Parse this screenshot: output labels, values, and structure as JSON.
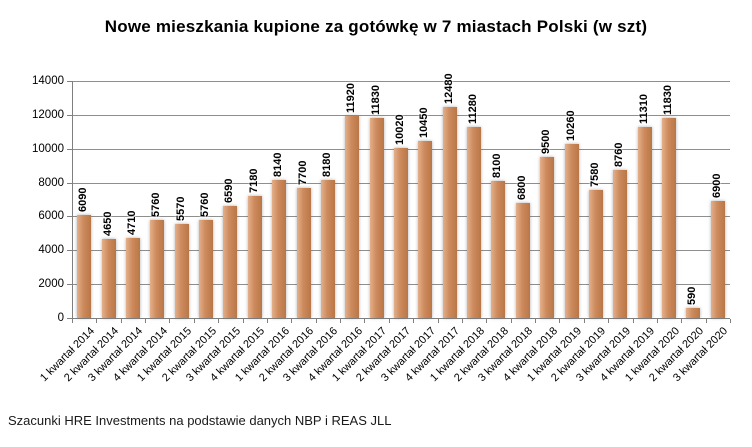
{
  "footer": {
    "source": "Szacunki HRE Investments na podstawie danych NBP i REAS JLL"
  },
  "chart_data": {
    "type": "bar",
    "title": "Nowe mieszkania kupione za gotówkę w 7 miastach Polski (w szt)",
    "categories": [
      "1 kwartał 2014",
      "2 kwartał 2014",
      "3 kwartał 2014",
      "4 kwartał 2014",
      "1 kwartał 2015",
      "2 kwartał 2015",
      "3 kwartał 2015",
      "4 kwartał 2015",
      "1 kwartał 2016",
      "2 kwartał 2016",
      "3 kwartał 2016",
      "4 kwartał 2016",
      "1 kwartał 2017",
      "2 kwartał 2017",
      "3 kwartał 2017",
      "4 kwartał 2017",
      "1 kwartał 2018",
      "2 kwartał 2018",
      "3 kwartał 2018",
      "4 kwartał 2018",
      "1 kwartał 2019",
      "2 kwartał 2019",
      "3 kwartał 2019",
      "4 kwartał 2019",
      "1 kwartał 2020",
      "2 kwartał 2020",
      "3 kwartał 2020"
    ],
    "values": [
      6090,
      4650,
      4710,
      5760,
      5570,
      5760,
      6590,
      7180,
      8140,
      7700,
      8180,
      11920,
      11830,
      10020,
      10450,
      12480,
      11280,
      8100,
      6800,
      9500,
      10260,
      7580,
      8760,
      11310,
      11830,
      590,
      6900
    ],
    "data_labels_rotation": 90,
    "x_label_rotation": -45,
    "xlabel": "",
    "ylabel": "",
    "ylim": [
      0,
      14000
    ],
    "y_ticks": [
      0,
      2000,
      4000,
      6000,
      8000,
      10000,
      12000,
      14000
    ],
    "grid": true,
    "legend": false,
    "bar_color": "#CD8A5D",
    "bar_color_light": "#E4B08A",
    "bar_color_dark": "#B97747",
    "gridline_color": "#8e8e8e",
    "axis_color": "#7f7f7f"
  }
}
